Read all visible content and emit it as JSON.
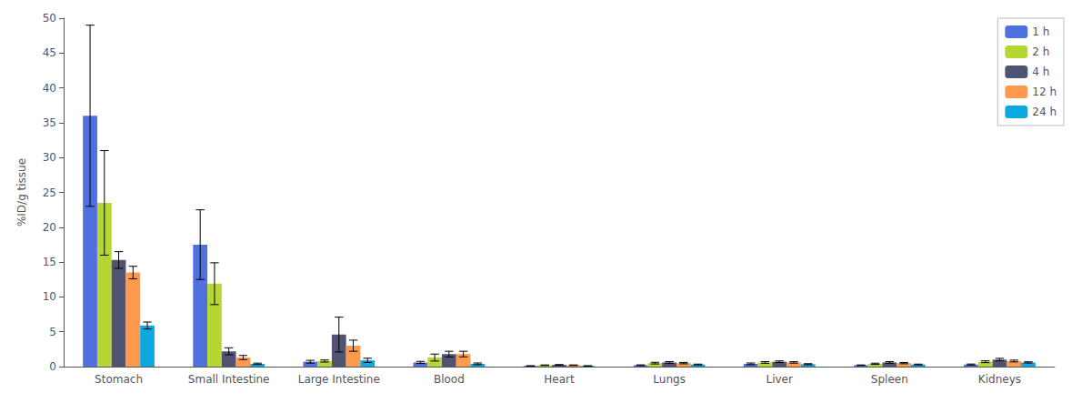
{
  "chart_data": {
    "type": "bar",
    "categories": [
      "Stomach",
      "Small Intestine",
      "Large Intestine",
      "Blood",
      "Heart",
      "Lungs",
      "Liver",
      "Spleen",
      "Kidneys"
    ],
    "series": [
      {
        "name": "1 h",
        "values": [
          36.0,
          17.5,
          0.7,
          0.6,
          0.1,
          0.2,
          0.4,
          0.2,
          0.3
        ],
        "errors": [
          13.0,
          5.0,
          0.2,
          0.15,
          0.03,
          0.05,
          0.12,
          0.04,
          0.07
        ]
      },
      {
        "name": "2 h",
        "values": [
          23.5,
          11.9,
          0.8,
          1.3,
          0.2,
          0.5,
          0.6,
          0.4,
          0.7
        ],
        "errors": [
          7.5,
          3.0,
          0.15,
          0.5,
          0.04,
          0.12,
          0.12,
          0.09,
          0.13
        ]
      },
      {
        "name": "4 h",
        "values": [
          15.3,
          2.2,
          4.6,
          1.8,
          0.25,
          0.6,
          0.7,
          0.6,
          1.0
        ],
        "errors": [
          1.2,
          0.5,
          2.5,
          0.4,
          0.04,
          0.12,
          0.12,
          0.12,
          0.18
        ]
      },
      {
        "name": "12 h",
        "values": [
          13.5,
          1.3,
          3.0,
          1.8,
          0.2,
          0.5,
          0.6,
          0.5,
          0.8
        ],
        "errors": [
          0.9,
          0.3,
          0.8,
          0.4,
          0.04,
          0.1,
          0.1,
          0.09,
          0.13
        ]
      },
      {
        "name": "24 h",
        "values": [
          5.9,
          0.4,
          0.9,
          0.4,
          0.1,
          0.3,
          0.35,
          0.3,
          0.6
        ],
        "errors": [
          0.5,
          0.1,
          0.3,
          0.12,
          0.03,
          0.06,
          0.07,
          0.06,
          0.09
        ]
      }
    ],
    "ylabel": "%ID/g tissue",
    "ylim": [
      0,
      50
    ],
    "yticks": [
      0,
      5,
      10,
      15,
      20,
      25,
      30,
      35,
      40,
      45,
      50
    ],
    "legend": "upper right",
    "grid": false
  }
}
